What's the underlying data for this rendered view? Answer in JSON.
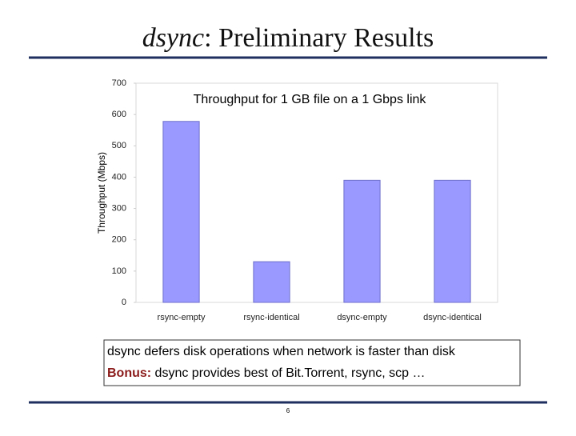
{
  "slide": {
    "title_italic": "dsync",
    "title_rest": ": Preliminary Results",
    "caption_line1": "dsync defers disk operations when network is faster than disk",
    "caption_bonus": "Bonus:",
    "caption_line2": " dsync provides best of Bit.Torrent, rsync, scp …",
    "page_number": "6"
  },
  "chart_data": {
    "type": "bar",
    "title": "Throughput for 1 GB file on a 1 Gbps link",
    "y_label": "Throughput (Mbps)",
    "categories": [
      "rsync-empty",
      "rsync-identical",
      "dsync-empty",
      "dsync-identical"
    ],
    "values": [
      578,
      130,
      390,
      390
    ],
    "color": "#9999ff",
    "ylim": [
      0,
      700
    ],
    "yticks": [
      0,
      100,
      200,
      300,
      400,
      500,
      600,
      700
    ],
    "grid": false
  }
}
